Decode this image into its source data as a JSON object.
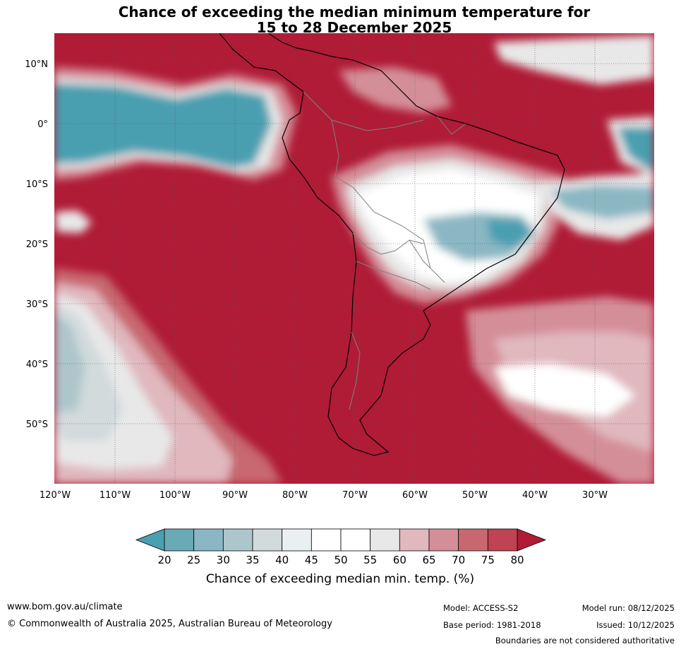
{
  "title": {
    "line1": "Chance of exceeding the median minimum temperature for",
    "line2": "15 to 28 December 2025"
  },
  "map": {
    "region": "South America",
    "lon_range": [
      -120,
      -20
    ],
    "lat_range": [
      -60,
      15
    ],
    "lon_ticks": [
      "120°W",
      "110°W",
      "100°W",
      "90°W",
      "80°W",
      "70°W",
      "60°W",
      "50°W",
      "40°W",
      "30°W"
    ],
    "lat_ticks": [
      "10°N",
      "0°",
      "10°S",
      "20°S",
      "30°S",
      "40°S",
      "50°S"
    ],
    "gridlines": true
  },
  "colorbar": {
    "levels": [
      "20",
      "25",
      "30",
      "35",
      "40",
      "45",
      "50",
      "55",
      "60",
      "65",
      "70",
      "75",
      "80"
    ],
    "colors": [
      "#4a9fb0",
      "#6aa9b6",
      "#8ab7c3",
      "#adc6cb",
      "#d2dadc",
      "#eaf0f2",
      "#ffffff",
      "#ffffff",
      "#e8e8e8",
      "#e0b8be",
      "#d48e98",
      "#c8676f",
      "#bf4352",
      "#b01b36"
    ],
    "label": "Chance of exceeding median min. temp. (%)"
  },
  "footer": {
    "website": "www.bom.gov.au/climate",
    "copyright": "© Commonwealth of Australia 2025, Australian Bureau of Meteorology",
    "model": "Model: ACCESS-S2",
    "base_period": "Base period: 1981-2018",
    "model_run": "Model run: 08/12/2025",
    "issued": "Issued: 10/12/2025",
    "disclaimer": "Boundaries are not considered authoritative"
  }
}
